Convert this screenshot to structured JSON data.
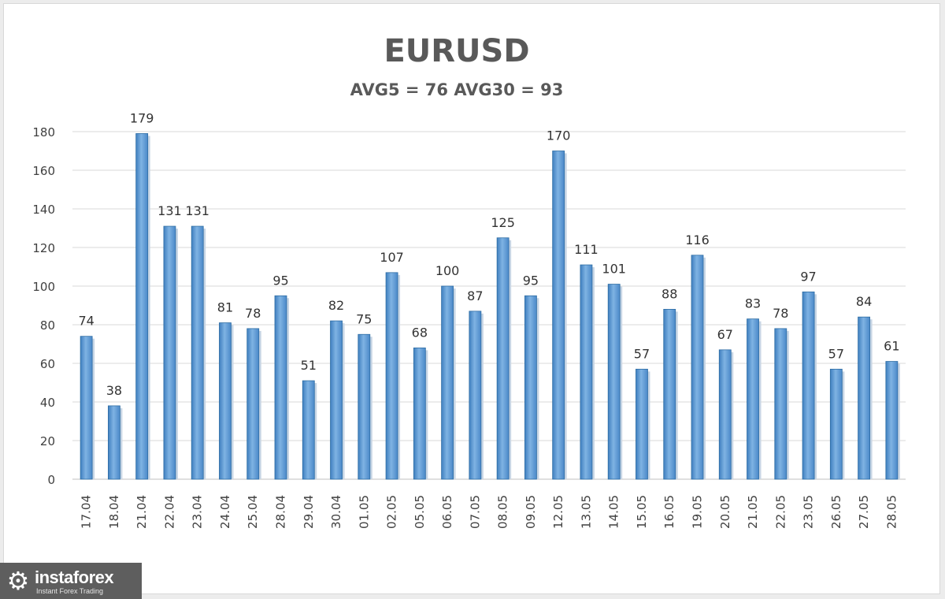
{
  "chart_data": {
    "type": "bar",
    "title": "EURUSD",
    "subtitle": "AVG5 = 76 AVG30 = 93",
    "xlabel": "",
    "ylabel": "",
    "ylim": [
      0,
      180
    ],
    "yticks": [
      0,
      20,
      40,
      60,
      80,
      100,
      120,
      140,
      160,
      180
    ],
    "grid": true,
    "categories": [
      "17.04",
      "18.04",
      "21.04",
      "22.04",
      "23.04",
      "24.04",
      "25.04",
      "28.04",
      "29.04",
      "30.04",
      "01.05",
      "02.05",
      "05.05",
      "06.05",
      "07.05",
      "08.05",
      "09.05",
      "12.05",
      "13.05",
      "14.05",
      "15.05",
      "16.05",
      "19.05",
      "20.05",
      "21.05",
      "22.05",
      "23.05",
      "26.05",
      "27.05",
      "28.05"
    ],
    "values": [
      74,
      38,
      179,
      131,
      131,
      81,
      78,
      95,
      51,
      82,
      75,
      107,
      68,
      100,
      87,
      125,
      95,
      170,
      111,
      101,
      57,
      88,
      116,
      67,
      83,
      78,
      97,
      57,
      84,
      61
    ],
    "bar_color": "#5b9bd5"
  },
  "watermark": {
    "brand": "instaforex",
    "tagline": "Instant Forex Trading",
    "icon": "gear-icon"
  }
}
